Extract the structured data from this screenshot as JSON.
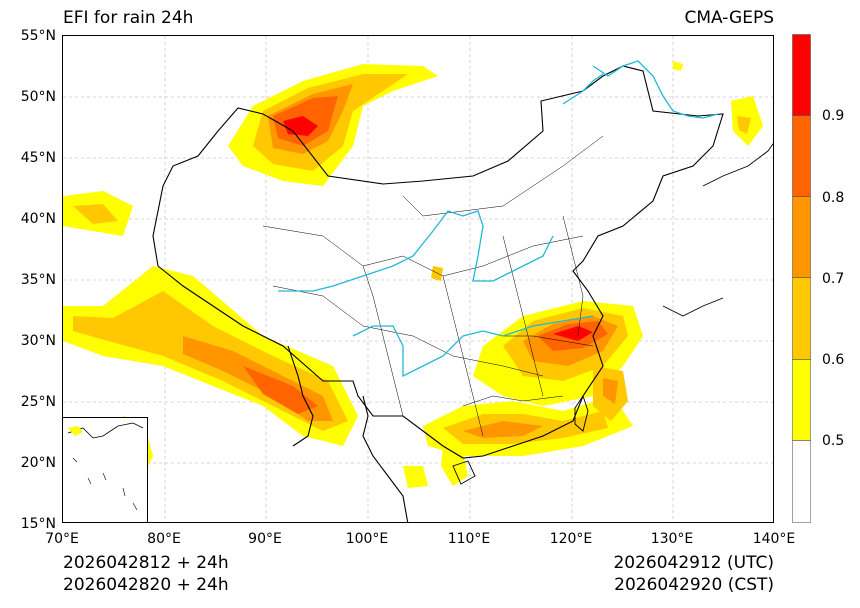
{
  "title_left": "EFI for rain 24h",
  "title_right": "CMA-GEPS",
  "lat_labels": [
    "55°N",
    "50°N",
    "45°N",
    "40°N",
    "35°N",
    "30°N",
    "25°N",
    "20°N",
    "15°N"
  ],
  "lon_labels": [
    "70°E",
    "80°E",
    "90°E",
    "100°E",
    "110°E",
    "120°E",
    "130°E",
    "140°E"
  ],
  "init_utc": "2026042812 + 24h",
  "init_cst": "2026042820 + 24h",
  "valid_utc": "2026042912 (UTC)",
  "valid_cst": "2026042920 (CST)",
  "colorbar": {
    "levels": [
      0.5,
      0.6,
      0.7,
      0.8,
      0.9
    ],
    "tick_labels": [
      "0.5",
      "0.6",
      "0.7",
      "0.8",
      "0.9"
    ],
    "colors": [
      "#ffffff",
      "#ffff00",
      "#ffc800",
      "#ff9600",
      "#ff6400",
      "#ff0000"
    ]
  },
  "map": {
    "extent_lon": [
      70,
      140
    ],
    "extent_lat": [
      15,
      55
    ],
    "border_color": "#000000",
    "river_color": "#22b8d8",
    "grid_color": "#c8c8c8"
  }
}
